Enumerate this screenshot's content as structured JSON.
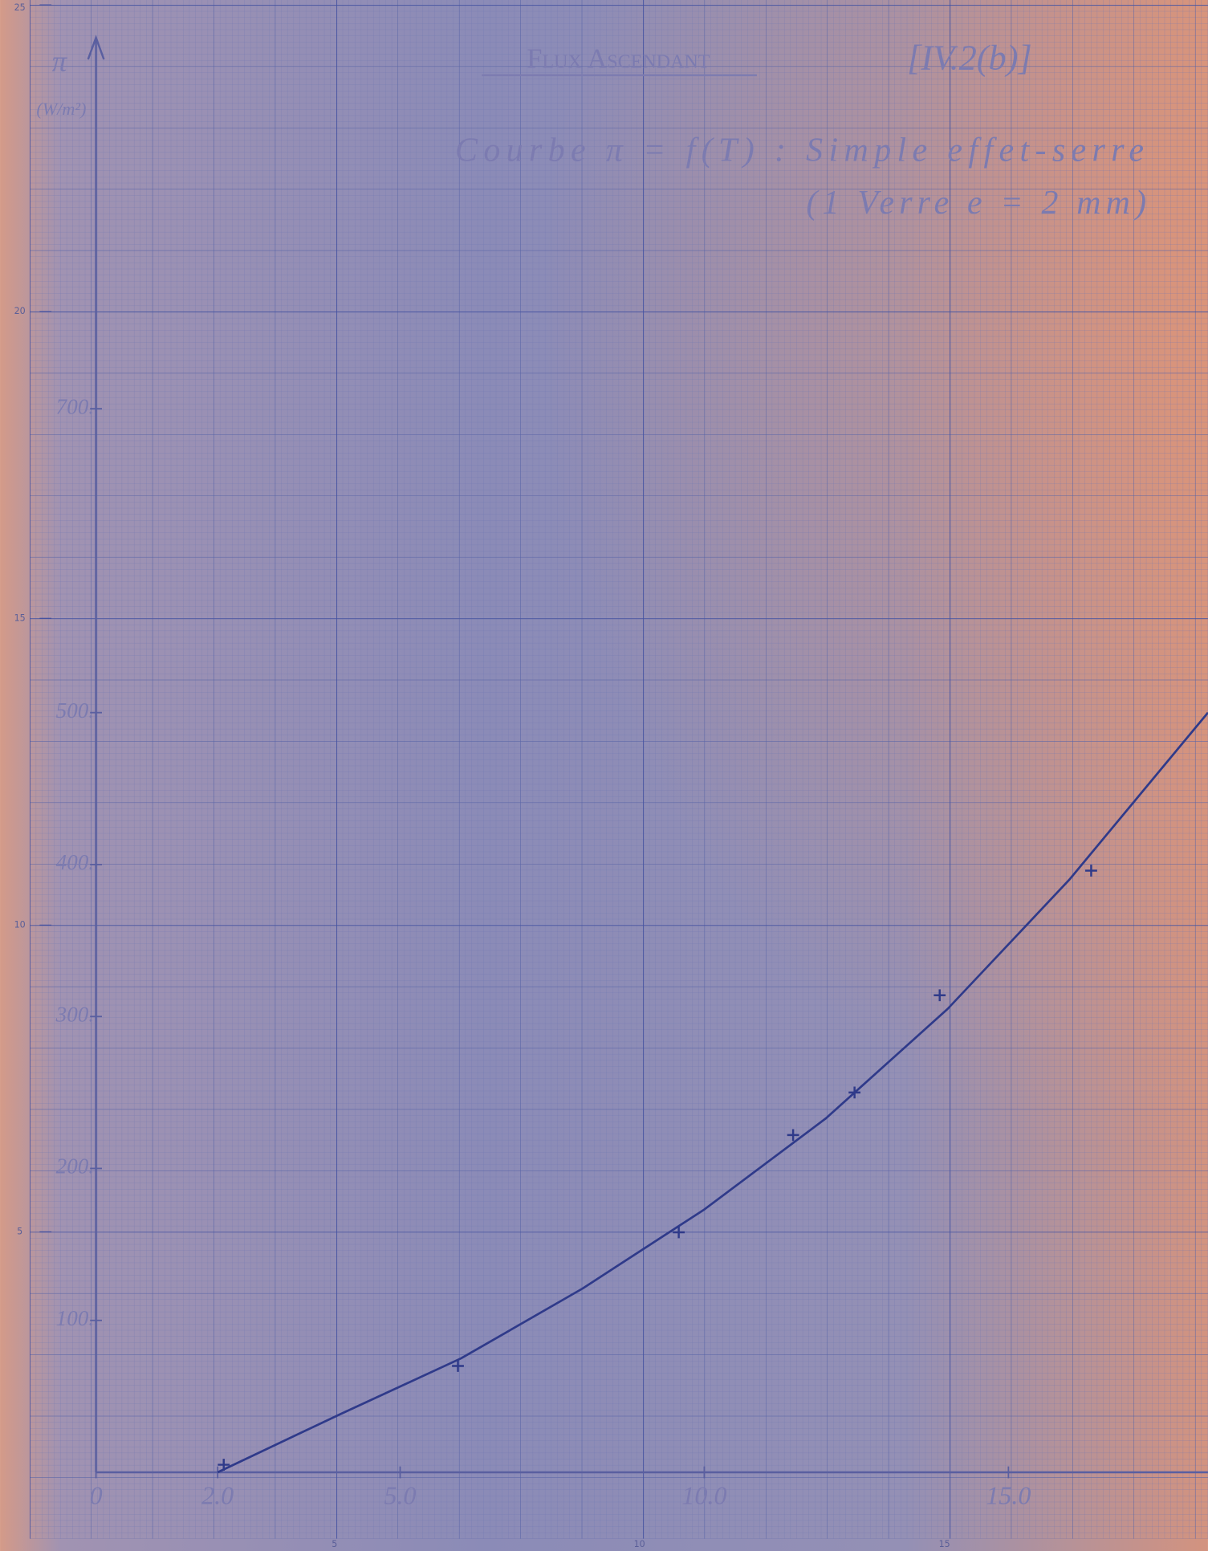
{
  "chart_data": {
    "type": "line",
    "title": "Flux Ascendant",
    "figure_ref": "[IV.2(b)]",
    "subtitle": "Courbe π = f(T)  : Simple effet-serre",
    "note": "(1 Verre e = 2 mm)",
    "y_label": "π",
    "y_unit": "(W/m²)",
    "xlim": [
      0,
      18.28
    ],
    "ylim": [
      0,
      969
    ],
    "xticks": [
      0,
      {
        "value": 2,
        "label": "2.0"
      },
      {
        "value": 5,
        "label": "5.0"
      },
      {
        "value": 10,
        "label": "10.0"
      },
      {
        "value": 15,
        "label": "15.0"
      }
    ],
    "yticks": [
      {
        "value": 100,
        "label": "100."
      },
      {
        "value": 200,
        "label": "200."
      },
      {
        "value": 300,
        "label": "300."
      },
      {
        "value": 400,
        "label": "400."
      },
      {
        "value": 500,
        "label": "500."
      },
      {
        "value": 700,
        "label": "700."
      }
    ],
    "x2lim": [
      1.09,
      19.32
    ],
    "x2ticks": [
      5,
      10,
      15
    ],
    "y2lim": [
      1.08,
      25.08
    ],
    "y2ticks": [
      5,
      10,
      15,
      20,
      25
    ],
    "series": [
      {
        "color": "#2f3a8a",
        "marker": "+",
        "x": [
          2.1,
          5.95,
          9.58,
          11.46,
          12.47,
          13.87,
          16.36
        ],
        "values": [
          5,
          70,
          158,
          222,
          250,
          314,
          396
        ]
      },
      {
        "color": "#2f3a8a",
        "x": [
          2,
          4,
          6,
          8,
          10,
          12,
          14,
          16,
          18.28
        ],
        "values": [
          0,
          38,
          75,
          121,
          173,
          233,
          305,
          390,
          500
        ]
      }
    ]
  }
}
